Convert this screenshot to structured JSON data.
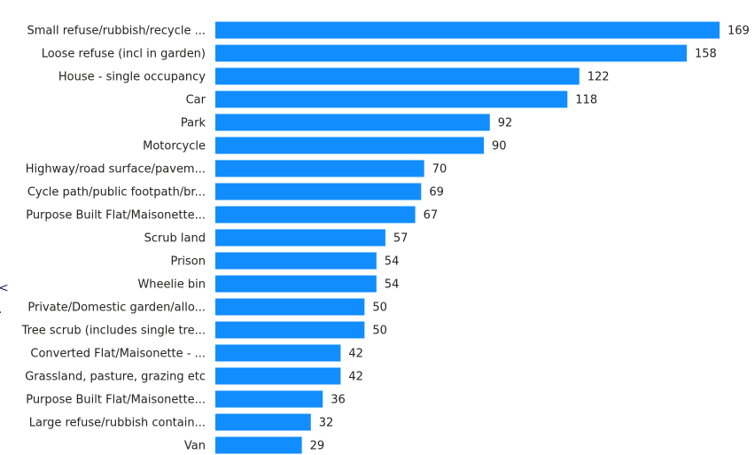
{
  "chart_data": {
    "type": "bar",
    "orientation": "horizontal",
    "categories": [
      "Small refuse/rubbish/recycle ...",
      "Loose refuse (incl in garden)",
      "House - single occupancy",
      "Car",
      "Park",
      "Motorcycle",
      "Highway/road surface/pavem...",
      "Cycle path/public footpath/br...",
      "Purpose Built Flat/Maisonette...",
      "Scrub land",
      "Prison",
      "Wheelie bin",
      "Private/Domestic garden/allo...",
      "Tree scrub (includes single tre...",
      "Converted Flat/Maisonette - ...",
      "Grassland, pasture, grazing etc",
      "Purpose Built Flat/Maisonette...",
      "Large refuse/rubbish contain...",
      "Van"
    ],
    "values": [
      169,
      158,
      122,
      118,
      92,
      90,
      70,
      69,
      67,
      57,
      54,
      54,
      50,
      50,
      42,
      42,
      36,
      32,
      29
    ],
    "title": "",
    "xlabel": "",
    "ylabel": "",
    "xlim": [
      0,
      169
    ],
    "grid": false,
    "data_labels": true,
    "bar_color": "#118DFF"
  }
}
